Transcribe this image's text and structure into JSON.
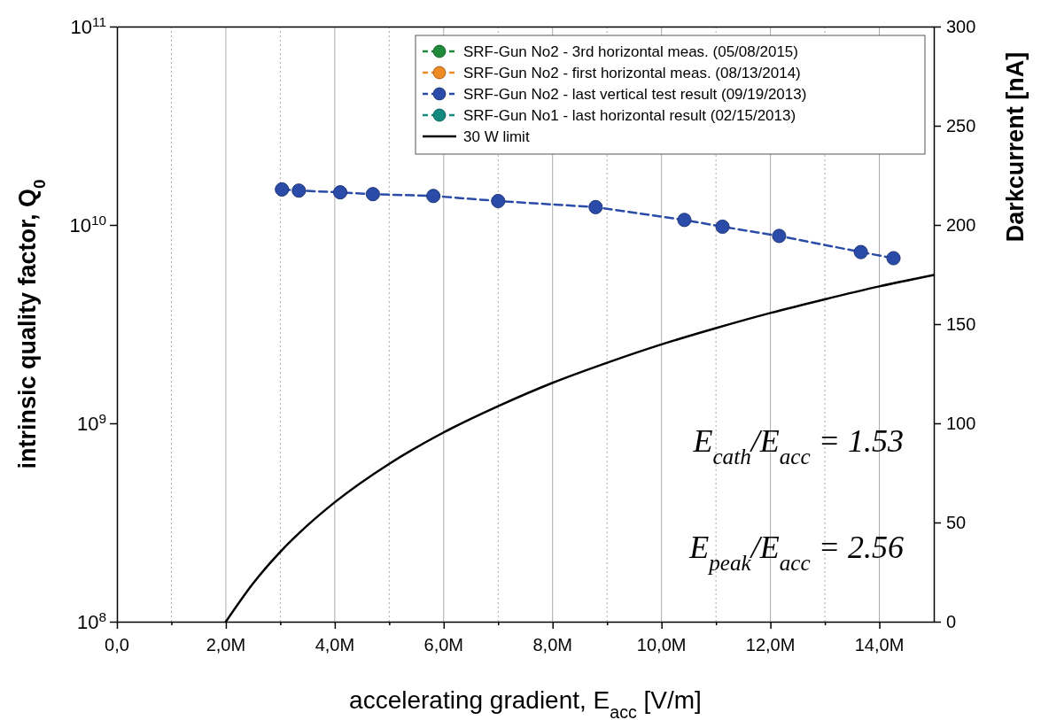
{
  "chart_data": {
    "type": "line",
    "xlabel": "accelerating gradient, E$_{acc}$ [V/m]",
    "ylabel": "intrinsic quality factor, Q$_{0}$",
    "y2label": "Darkcurrent [nA]",
    "log": "y",
    "xlim": [
      0,
      15
    ],
    "ylim": [
      100000000.0,
      100000000000.0
    ],
    "y2lim": [
      0,
      300
    ],
    "xticks": [
      {
        "value": 0,
        "label": "0,0"
      },
      {
        "value": 1,
        "label": null
      },
      {
        "value": 2,
        "label": "2,0M"
      },
      {
        "value": 3,
        "label": null
      },
      {
        "value": 4,
        "label": "4,0M"
      },
      {
        "value": 5,
        "label": null
      },
      {
        "value": 6,
        "label": "6,0M"
      },
      {
        "value": 7,
        "label": null
      },
      {
        "value": 8,
        "label": "8,0M"
      },
      {
        "value": 9,
        "label": null
      },
      {
        "value": 10,
        "label": "10,0M"
      },
      {
        "value": 11,
        "label": null
      },
      {
        "value": 12,
        "label": "12,0M"
      },
      {
        "value": 13,
        "label": null
      },
      {
        "value": 14,
        "label": "14,0M"
      }
    ],
    "yticks": [
      {
        "value": 100000000.0,
        "label": "10$^{8}$"
      },
      {
        "value": 1000000000.0,
        "label": "10$^{9}$"
      },
      {
        "value": 10000000000.0,
        "label": "10$^{10}$"
      },
      {
        "value": 100000000000.0,
        "label": "10$^{11}$"
      }
    ],
    "y2ticks": [
      0,
      50,
      100,
      150,
      200,
      250,
      300
    ],
    "grid": "x",
    "legend": "top right",
    "marker": "circle",
    "line_style": "dashed",
    "series": [
      {
        "name": "SRF-Gun No2 - 3rd horizontal meas. (05/08/2015)",
        "color": "#1e8a3a"
      },
      {
        "name": "SRF-Gun No2 - first horizontal meas. (08/13/2014)",
        "color": "#f08a24"
      },
      {
        "name": "SRF-Gun No2 - last vertical test result (09/19/2013)",
        "color": "#2b4ba8",
        "x": [
          3.03,
          3.34,
          4.1,
          4.7,
          5.81,
          7.0,
          8.79,
          10.42,
          11.12,
          12.16,
          13.66,
          14.26
        ],
        "values": [
          15100000000.0,
          14900000000.0,
          14600000000.0,
          14300000000.0,
          14000000000.0,
          13200000000.0,
          12300000000.0,
          10600000000.0,
          9800000000.0,
          8800000000.0,
          7300000000.0,
          6800000000.0
        ]
      },
      {
        "name": "SRF-Gun No1 - last horizontal result (02/15/2013)",
        "color": "#138a80"
      },
      {
        "name": "30 W limit",
        "color": "#000000",
        "marker": "none",
        "line_style": "solid",
        "x": [
          2,
          2.5,
          3,
          3.5,
          4,
          5,
          6,
          7,
          8,
          9,
          10,
          11,
          12,
          13,
          14,
          15
        ],
        "values": [
          100000000.0,
          156000000.0,
          225000000.0,
          306000000.0,
          400000000.0,
          625000000.0,
          900000000.0,
          1220000000.0,
          1600000000.0,
          2020000000.0,
          2500000000.0,
          3020000000.0,
          3600000000.0,
          4220000000.0,
          4900000000.0,
          5600000000.0
        ]
      }
    ],
    "annotations": [
      "E$_{cath}$/E$_{acc}$ = 1.53",
      "E$_{peak}$/E$_{acc}$ = 2.56"
    ]
  }
}
